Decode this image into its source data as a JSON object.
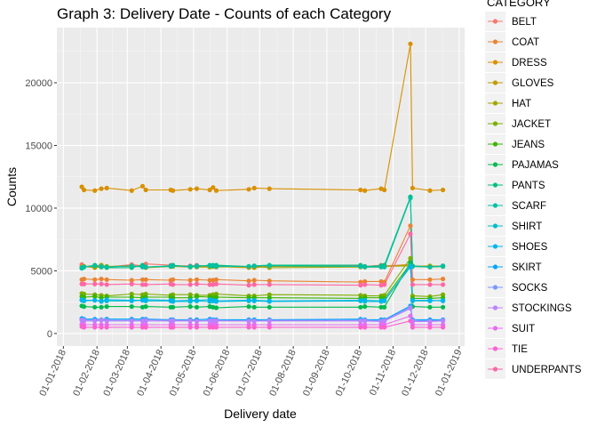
{
  "chart_data": {
    "type": "line",
    "title": "Graph 3: Delivery Date - Counts of each Category",
    "xlabel": "Delivery date",
    "ylabel": "Counts",
    "xlim": [
      "2017-12-26",
      "2019-01-06"
    ],
    "ylim": [
      -1000,
      24400
    ],
    "x_ticks": [
      "01-01-2018",
      "01-02-2018",
      "01-03-2018",
      "01-04-2018",
      "01-05-2018",
      "01-06-2018",
      "01-07-2018",
      "01-08-2018",
      "01-09-2018",
      "01-10-2018",
      "01-11-2018",
      "01-12-2018",
      "01-01-2019"
    ],
    "y_ticks": [
      0,
      5000,
      10000,
      15000,
      20000
    ],
    "grid": true,
    "legend": {
      "title": "CATEGORY",
      "position": "right"
    },
    "x": [
      "2018-01-18",
      "2018-01-20",
      "2018-01-30",
      "2018-02-05",
      "2018-02-10",
      "2018-03-05",
      "2018-03-15",
      "2018-03-18",
      "2018-04-10",
      "2018-04-12",
      "2018-04-28",
      "2018-05-04",
      "2018-05-16",
      "2018-05-19",
      "2018-05-22",
      "2018-06-21",
      "2018-06-26",
      "2018-07-10",
      "2018-10-02",
      "2018-10-06",
      "2018-10-21",
      "2018-10-24",
      "2018-11-17",
      "2018-11-19",
      "2018-12-05",
      "2018-12-17"
    ],
    "series": [
      {
        "name": "BELT",
        "color": "#F8766D",
        "values": [
          5500,
          5350,
          5400,
          5450,
          5300,
          5500,
          5400,
          5550,
          5450,
          5400,
          5400,
          5450,
          5350,
          5350,
          5400,
          5300,
          5350,
          5400,
          5400,
          5350,
          5450,
          5400,
          5500,
          5400,
          5350,
          5400
        ]
      },
      {
        "name": "COAT",
        "color": "#EA8331",
        "values": [
          4300,
          4350,
          4300,
          4350,
          4300,
          4250,
          4300,
          4300,
          4250,
          4300,
          4250,
          4300,
          4250,
          4250,
          4300,
          4200,
          4250,
          4200,
          4100,
          4150,
          4150,
          4100,
          8600,
          4300,
          4300,
          4350
        ]
      },
      {
        "name": "DRESS",
        "color": "#D89000",
        "values": [
          11700,
          11450,
          11400,
          11550,
          11600,
          11400,
          11750,
          11450,
          11450,
          11400,
          11500,
          11550,
          11450,
          11650,
          11400,
          11500,
          11600,
          11550,
          11450,
          11400,
          11550,
          11450,
          23100,
          11600,
          11400,
          11450
        ]
      },
      {
        "name": "GLOVES",
        "color": "#C09B00",
        "values": [
          5300,
          5350,
          5250,
          5300,
          5350,
          5350,
          5350,
          5250,
          5350,
          5400,
          5350,
          5300,
          5300,
          5350,
          5350,
          5250,
          5250,
          5350,
          5350,
          5300,
          5300,
          5350,
          5500,
          5350,
          5300,
          5350
        ]
      },
      {
        "name": "HAT",
        "color": "#A3A500",
        "values": [
          5300,
          5350,
          5300,
          5450,
          5350,
          5400,
          5350,
          5300,
          5350,
          5350,
          5300,
          5350,
          5300,
          5350,
          5300,
          5350,
          5350,
          5250,
          5300,
          5300,
          5350,
          5350,
          5400,
          5350,
          5400,
          5350
        ]
      },
      {
        "name": "JACKET",
        "color": "#7CAE00",
        "values": [
          3200,
          3150,
          3100,
          3050,
          3000,
          3150,
          3100,
          3150,
          3050,
          3100,
          3100,
          3050,
          3050,
          3100,
          3150,
          3000,
          3000,
          3100,
          3050,
          3000,
          3000,
          3050,
          6000,
          3000,
          2950,
          3100
        ]
      },
      {
        "name": "JEANS",
        "color": "#39B600",
        "values": [
          2950,
          2900,
          2950,
          2850,
          2900,
          2900,
          2850,
          2900,
          2900,
          2850,
          2850,
          2950,
          2900,
          2850,
          2900,
          2850,
          2850,
          2850,
          2800,
          2850,
          2850,
          2800,
          5550,
          2800,
          2800,
          2850
        ]
      },
      {
        "name": "PAJAMAS",
        "color": "#00BB4E",
        "values": [
          2200,
          2150,
          2100,
          2100,
          2150,
          2150,
          2100,
          2150,
          2100,
          2100,
          2150,
          2100,
          2150,
          2100,
          2050,
          2150,
          2100,
          2100,
          2100,
          2150,
          2100,
          2100,
          5650,
          2150,
          2100,
          2100
        ]
      },
      {
        "name": "PANTS",
        "color": "#00BF7D",
        "values": [
          5200,
          5300,
          5450,
          5300,
          5250,
          5250,
          5450,
          5300,
          5350,
          5450,
          5300,
          5350,
          5450,
          5400,
          5450,
          5350,
          5400,
          5450,
          5450,
          5350,
          5400,
          5450,
          10900,
          5400,
          5300,
          5350
        ]
      },
      {
        "name": "SCARF",
        "color": "#00C1A3",
        "values": [
          5250,
          5300,
          5400,
          5350,
          5300,
          5400,
          5300,
          5300,
          5400,
          5400,
          5350,
          5400,
          5400,
          5450,
          5350,
          5350,
          5400,
          5400,
          5350,
          5300,
          5300,
          5300,
          10800,
          5350,
          5300,
          5400
        ]
      },
      {
        "name": "SHIRT",
        "color": "#00BECA",
        "values": [
          2650,
          2600,
          2650,
          2550,
          2600,
          2600,
          2650,
          2600,
          2600,
          2550,
          2550,
          2600,
          2550,
          2600,
          2550,
          2600,
          2600,
          2550,
          2600,
          2550,
          2550,
          2600,
          5400,
          2600,
          2600,
          2650
        ]
      },
      {
        "name": "SHOES",
        "color": "#00B5EE",
        "values": [
          2700,
          2650,
          2650,
          2600,
          2700,
          2650,
          2650,
          2700,
          2650,
          2600,
          2650,
          2650,
          2700,
          2650,
          2600,
          2650,
          2650,
          2600,
          2650,
          2650,
          2600,
          2650,
          5300,
          2650,
          2650,
          2600
        ]
      },
      {
        "name": "SKIRT",
        "color": "#00A5FF",
        "values": [
          1200,
          1150,
          1150,
          1100,
          1150,
          1150,
          1150,
          1150,
          1100,
          1100,
          1100,
          1100,
          1150,
          1100,
          1100,
          1100,
          1100,
          1100,
          1150,
          1100,
          1100,
          1100,
          2200,
          1100,
          1100,
          1100
        ]
      },
      {
        "name": "SOCKS",
        "color": "#7997FF",
        "values": [
          1100,
          1100,
          1050,
          1100,
          1050,
          1050,
          1050,
          1100,
          1050,
          1050,
          1050,
          1000,
          1050,
          1050,
          1050,
          1000,
          1000,
          1050,
          1050,
          1050,
          1000,
          1050,
          2100,
          1050,
          1000,
          1050
        ]
      },
      {
        "name": "STOCKINGS",
        "color": "#B983FF",
        "values": [
          1050,
          1000,
          1000,
          1050,
          1000,
          1000,
          1000,
          1000,
          1000,
          1000,
          1000,
          1000,
          1000,
          1000,
          1000,
          1000,
          1000,
          1000,
          1000,
          1000,
          950,
          1000,
          2000,
          950,
          950,
          1000
        ]
      },
      {
        "name": "SUIT",
        "color": "#E76BF3",
        "values": [
          750,
          700,
          700,
          700,
          700,
          700,
          700,
          700,
          700,
          700,
          700,
          700,
          700,
          700,
          700,
          700,
          700,
          700,
          700,
          700,
          700,
          700,
          1400,
          700,
          700,
          700
        ]
      },
      {
        "name": "TIE",
        "color": "#FD61D1",
        "values": [
          550,
          500,
          500,
          500,
          500,
          500,
          500,
          500,
          500,
          500,
          500,
          500,
          500,
          500,
          500,
          500,
          500,
          500,
          500,
          500,
          500,
          500,
          1000,
          500,
          500,
          500
        ]
      },
      {
        "name": "UNDERPANTS",
        "color": "#FF67A4",
        "values": [
          3950,
          3950,
          3950,
          3950,
          3900,
          3950,
          3900,
          3900,
          3950,
          3900,
          3900,
          3950,
          3900,
          3900,
          3950,
          3850,
          3900,
          3900,
          3850,
          3900,
          3850,
          3900,
          7950,
          3900,
          3900,
          3900
        ]
      }
    ]
  }
}
